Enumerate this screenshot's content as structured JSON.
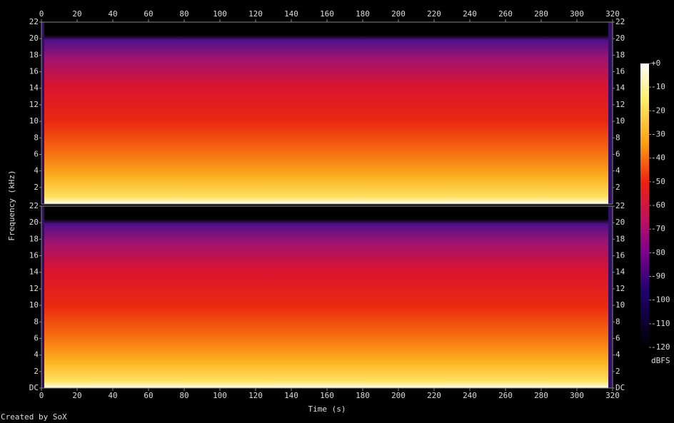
{
  "chart_data": {
    "type": "spectrogram",
    "xlabel": "Time (s)",
    "ylabel": "Frequency (kHz)",
    "xlim": [
      0,
      320
    ],
    "xticks": [
      0,
      20,
      40,
      60,
      80,
      100,
      120,
      140,
      160,
      180,
      200,
      220,
      240,
      260,
      280,
      300,
      320
    ],
    "panels": [
      {
        "ylim": [
          0,
          22
        ],
        "yticks": [
          2,
          4,
          6,
          8,
          10,
          12,
          14,
          16,
          18,
          20,
          22
        ]
      },
      {
        "ylim": [
          0,
          22
        ],
        "yticks": [
          {
            "value": 0,
            "label": "DC"
          },
          2,
          4,
          6,
          8,
          10,
          12,
          14,
          16,
          18,
          20,
          22
        ]
      }
    ],
    "colorbar": {
      "label": "dBFS",
      "lim": [
        -120,
        0
      ],
      "ticks": [
        {
          "value": 0,
          "label": "+0"
        },
        -10,
        -20,
        -30,
        -40,
        -50,
        -60,
        -70,
        -80,
        -90,
        -100,
        -110,
        -120
      ]
    },
    "footer": "Created by SoX"
  }
}
